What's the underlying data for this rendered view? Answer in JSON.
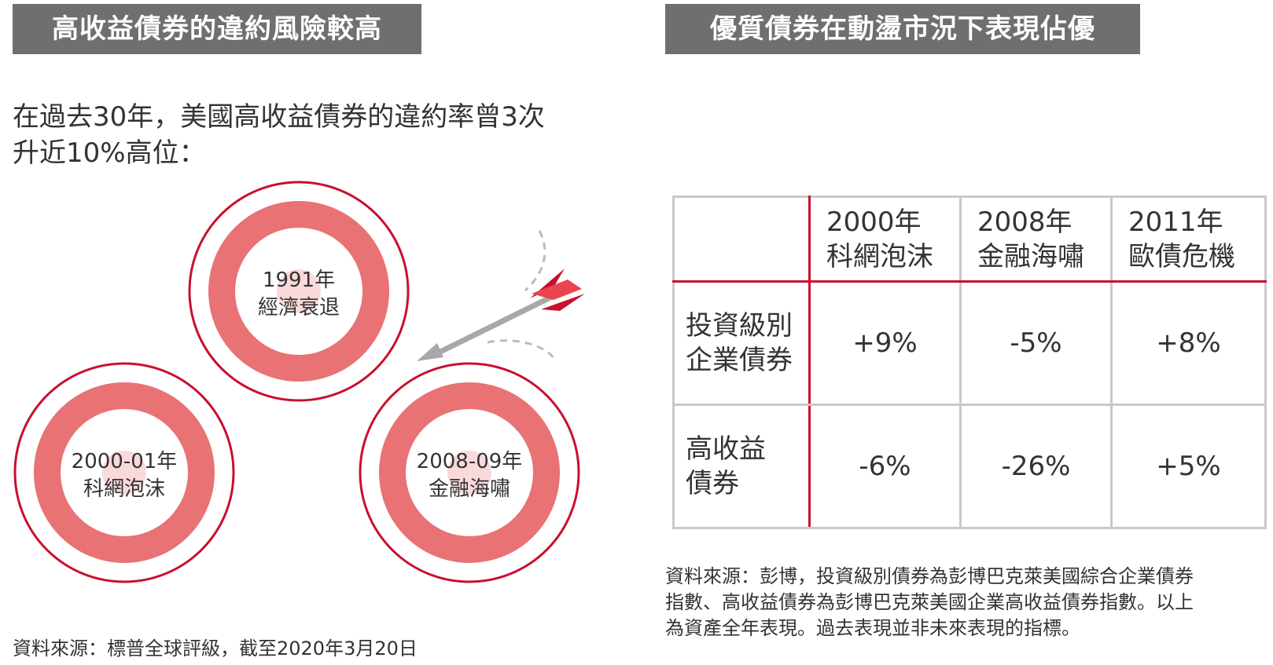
{
  "left": {
    "header": "高收益債券的違約風險較高",
    "intro_line1": "在過去30年，美國高收益債券的違約率曾3次",
    "intro_line2": "升近10%高位：",
    "targets": [
      {
        "year": "1991年",
        "event": "經濟衰退"
      },
      {
        "year": "2000-01年",
        "event": "科網泡沫"
      },
      {
        "year": "2008-09年",
        "event": "金融海嘯"
      }
    ],
    "source": "資料來源：標普全球評級，截至2020年3月20日"
  },
  "right": {
    "header": "優質債券在動盪市況下表現佔優",
    "table": {
      "columns": [
        {
          "year": "2000年",
          "event": "科網泡沫"
        },
        {
          "year": "2008年",
          "event": "金融海嘯"
        },
        {
          "year": "2011年",
          "event": "歐債危機"
        }
      ],
      "rows": [
        {
          "label_line1": "投資級別",
          "label_line2": "企業債券",
          "values": [
            "+9%",
            "-5%",
            "+8%"
          ]
        },
        {
          "label_line1": "高收益",
          "label_line2": "債券",
          "values": [
            "-6%",
            "-26%",
            "+5%"
          ]
        }
      ]
    },
    "source_line1": "資料來源：彭博，投資級別債券為彭博巴克萊美國綜合企業債券",
    "source_line2": "指數、高收益債券為彭博巴克萊美國企業高收益債券指數。以上",
    "source_line3": "為資產全年表現。過去表現並非未來表現的指標。"
  },
  "colors": {
    "header_bg": "#6f6f70",
    "accent_red": "#c8102e",
    "ring_red": "#e87274",
    "inner_pink": "#f9d9d9",
    "grid_gray": "#c9c9c9"
  }
}
